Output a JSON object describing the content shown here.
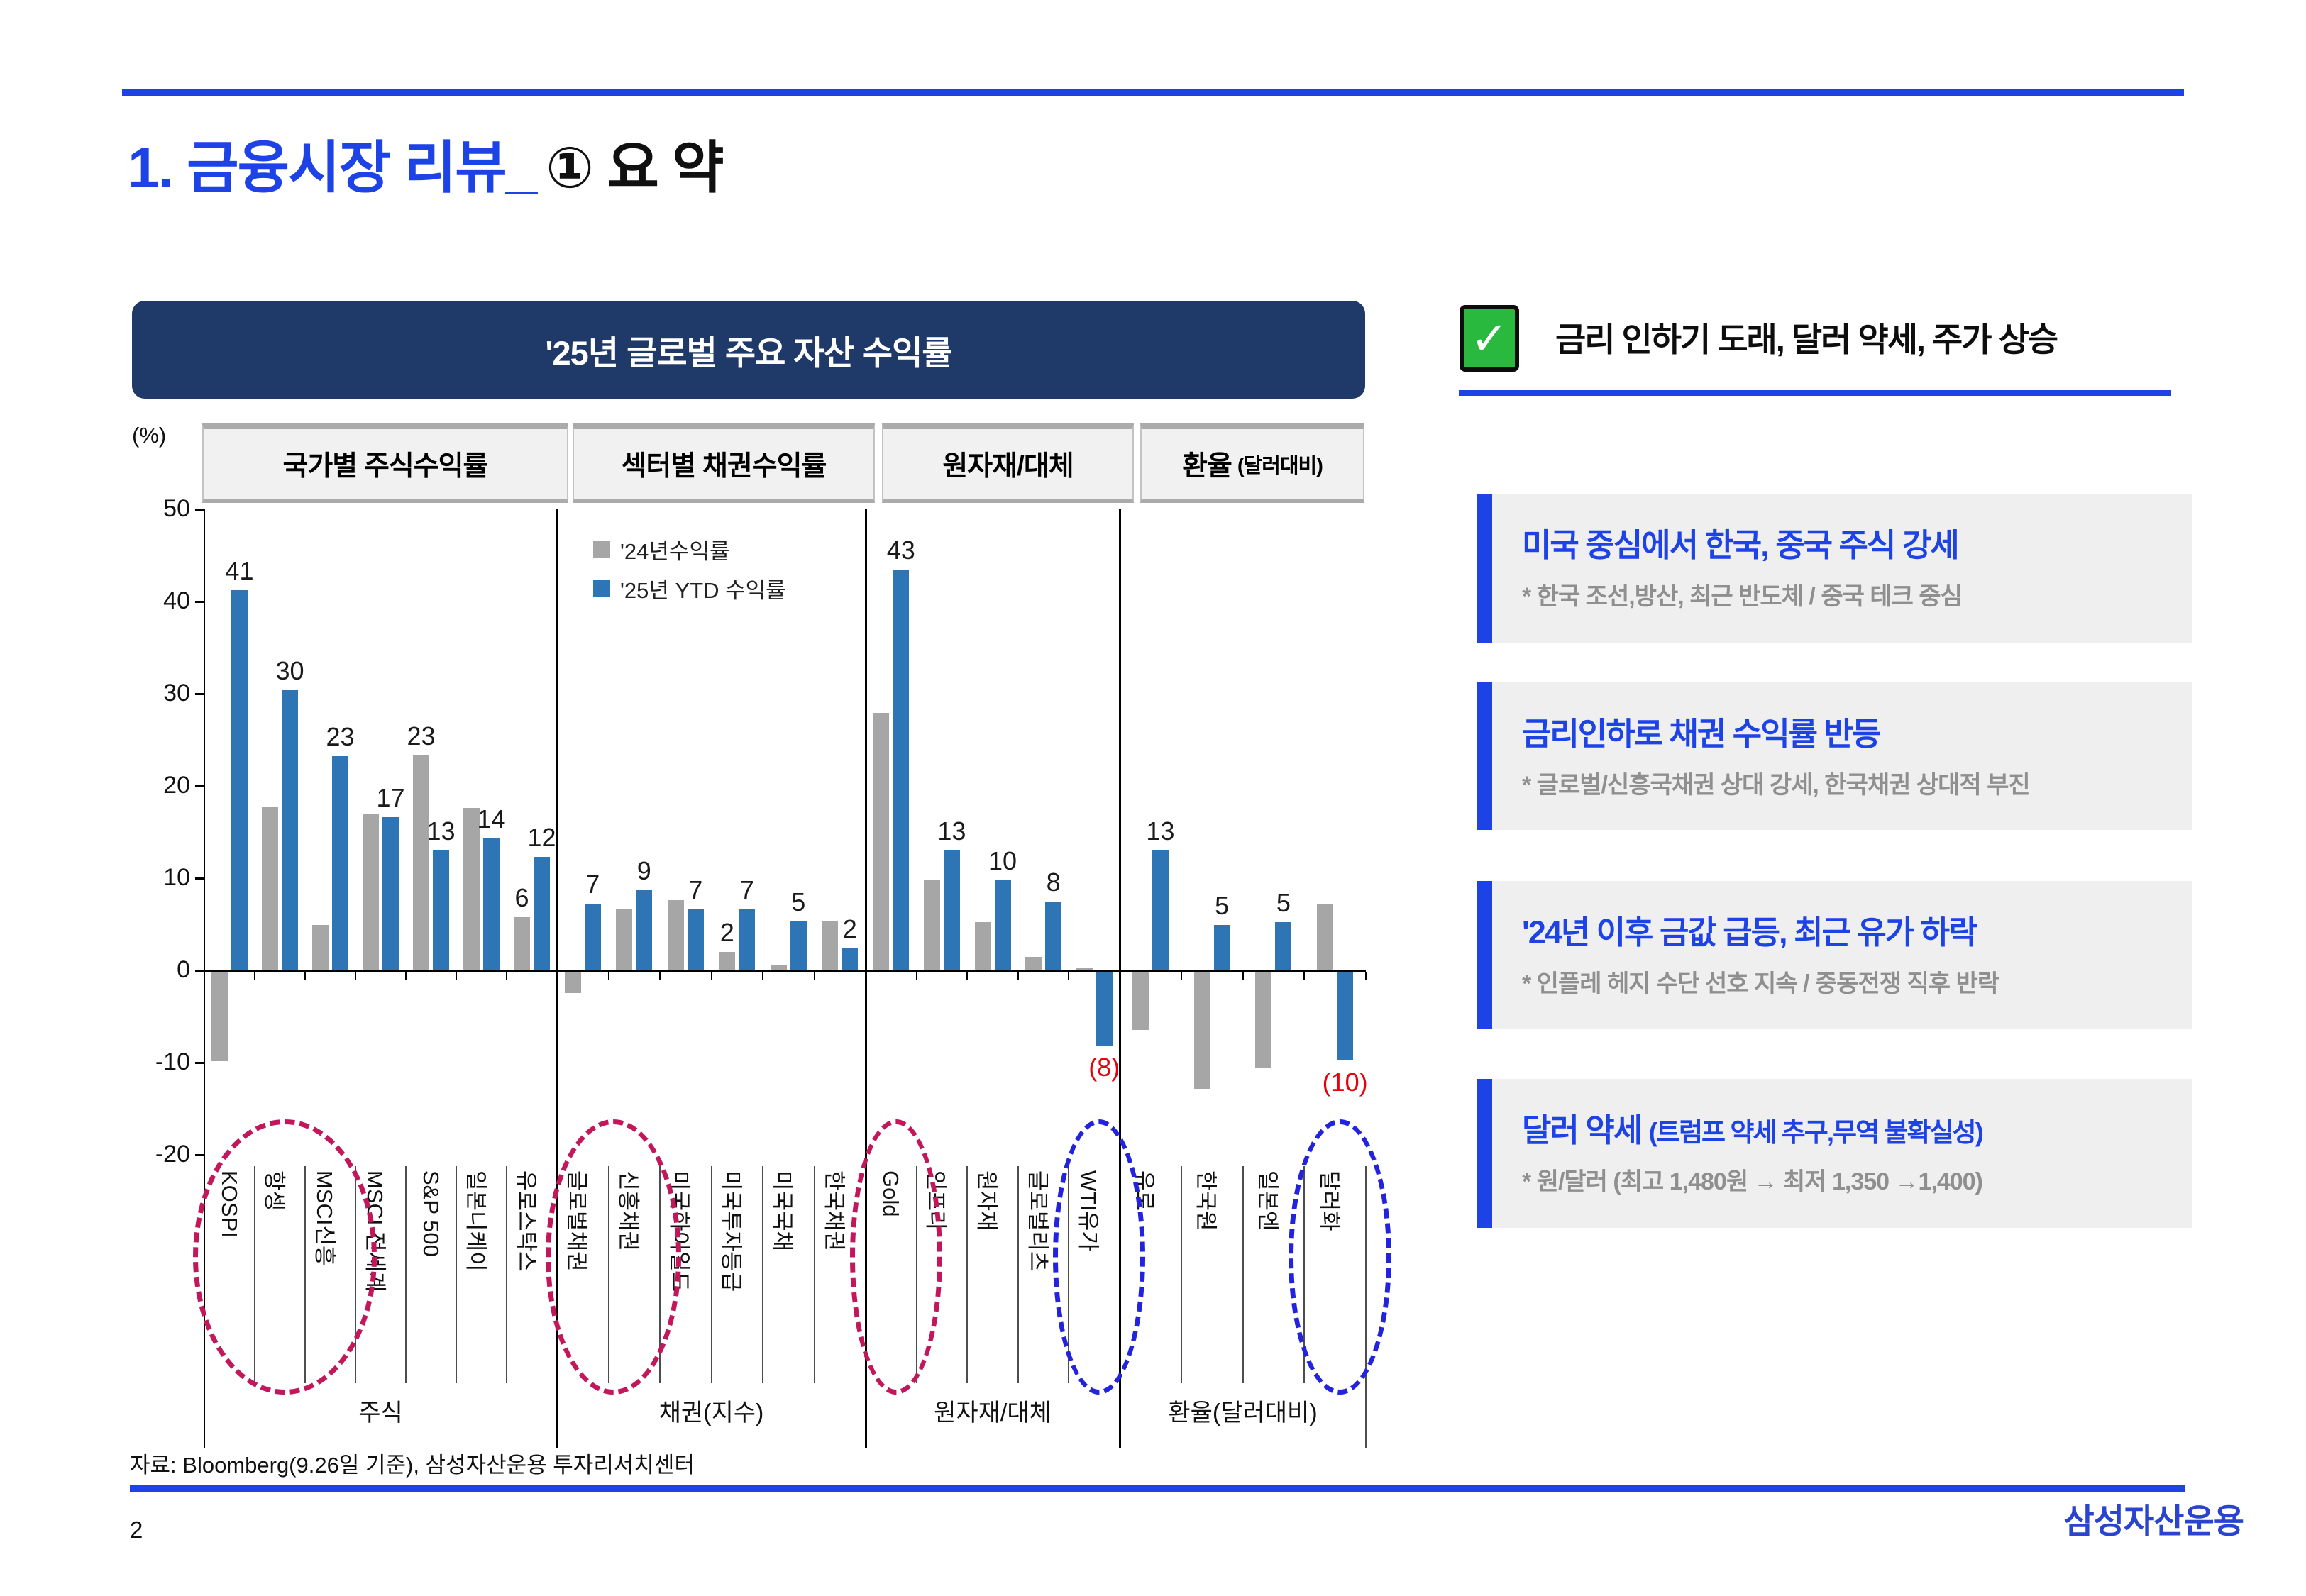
{
  "page": {
    "title_blue": "1. 금융시장 리뷰_",
    "title_black": "① 요 약",
    "source": "자료: Bloomberg(9.26일 기준), 삼성자산운용 투자리서치센터",
    "page_number": "2",
    "logo": "삼성자산운용"
  },
  "summary": {
    "check_glyph": "✓",
    "headline": "금리 인하기 도래, 달러 약세, 주가 상승",
    "callouts": [
      {
        "title": "미국 중심에서 한국, 중국 주식 강세",
        "title_suffix": "",
        "subtitle": "* 한국 조선,방산, 최근 반도체 / 중국 테크 중심"
      },
      {
        "title": "금리인하로 채권 수익률 반등",
        "title_suffix": "",
        "subtitle": "* 글로벌/신흥국채권 상대 강세, 한국채권 상대적 부진"
      },
      {
        "title": "'24년 이후 금값 급등, 최근 유가  하락",
        "title_suffix": "",
        "subtitle": "* 인플레 헤지 수단 선호 지속 / 중동전쟁 직후 반락"
      },
      {
        "title": "달러 약세 ",
        "title_suffix": "(트럼프 약세 추구,무역 불확실성)",
        "subtitle": "* 원/달러 (최고 1,480원 → 최저 1,350 →1,400)"
      }
    ]
  },
  "chart_card": {
    "title": "'25년 글로벌 주요 자산 수익률",
    "unit_label": "(%)"
  },
  "chart_data": {
    "type": "bar",
    "title": "'25년 글로벌 주요 자산 수익률",
    "ylabel": "(%)",
    "ylim": [
      -20,
      50
    ],
    "yticks": [
      50,
      40,
      30,
      20,
      10,
      0,
      -10,
      -20
    ],
    "grid": false,
    "legend_position": "upper-middle",
    "legend": [
      {
        "name": "'24년수익률",
        "color": "#a6a6a6"
      },
      {
        "name": "'25년 YTD 수익률",
        "color": "#2e75b6"
      }
    ],
    "negative_label_color": "#e8000d",
    "sections": [
      {
        "header": "국가별 주식수익률",
        "header_suffix": "",
        "group_label": "주식",
        "categories": [
          {
            "name": "KOSPI",
            "y24": -9.7,
            "y25": 41.2,
            "label25": "41"
          },
          {
            "name": "항셍",
            "y24": 17.7,
            "y25": 30.4,
            "label25": "30"
          },
          {
            "name": "MSCI신흥",
            "y24": 4.9,
            "y25": 23.2,
            "label25": "23"
          },
          {
            "name": "MSCI 전세계",
            "y24": 17.0,
            "y25": 16.6,
            "label25": "17"
          },
          {
            "name": "S&P 500",
            "y24": 23.3,
            "y25": 13.0,
            "label24": "23",
            "label25": "13"
          },
          {
            "name": "일본니케이",
            "y24": 17.6,
            "y25": 14.3,
            "label25": "14"
          },
          {
            "name": "유로스탁스",
            "y24": 5.8,
            "y25": 12.3,
            "label24": "6",
            "label25": "12"
          }
        ]
      },
      {
        "header": "섹터별 채권수익률",
        "header_suffix": "",
        "group_label": "채권(지수)",
        "categories": [
          {
            "name": "글로벌채권",
            "y24": -2.3,
            "y25": 7.2,
            "label25": "7"
          },
          {
            "name": "신흥채권",
            "y24": 6.6,
            "y25": 8.7,
            "label25": "9"
          },
          {
            "name": "미국하이일드",
            "y24": 7.6,
            "y25": 6.6,
            "label25": "7"
          },
          {
            "name": "미국투자등급",
            "y24": 2.0,
            "y25": 6.6,
            "label24": "2",
            "label25": "7"
          },
          {
            "name": "미국국채",
            "y24": 0.6,
            "y25": 5.3,
            "label25": "5"
          },
          {
            "name": "한국채권",
            "y24": 5.3,
            "y25": 2.4,
            "label25": "2"
          }
        ]
      },
      {
        "header": "원자재/대체",
        "header_suffix": "",
        "group_label": "원자재/대체",
        "categories": [
          {
            "name": "Gold",
            "y24": 27.9,
            "y25": 43.5,
            "label25": "43"
          },
          {
            "name": "인프라",
            "y24": 9.8,
            "y25": 13.0,
            "label25": "13"
          },
          {
            "name": "원자재",
            "y24": 5.2,
            "y25": 9.8,
            "label25": "10"
          },
          {
            "name": "글로벌리츠",
            "y24": 1.5,
            "y25": 7.5,
            "label25": "8"
          },
          {
            "name": "WTI유가",
            "y24": 0.2,
            "y25": -8.0,
            "label25": "(8)"
          }
        ]
      },
      {
        "header": "환율",
        "header_suffix": "(달러대비)",
        "group_label": "환율(달러대비)",
        "categories": [
          {
            "name": "유로",
            "y24": -6.3,
            "y25": 13.0,
            "label25": "13"
          },
          {
            "name": "한국원",
            "y24": -12.7,
            "y25": 4.9,
            "label25": "5"
          },
          {
            "name": "일본엔",
            "y24": -10.4,
            "y25": 5.2,
            "label25": "5"
          },
          {
            "name": "달러화",
            "y24": 7.2,
            "y25": -9.6,
            "label25": "(10)"
          }
        ]
      }
    ],
    "highlights": [
      {
        "section": 0,
        "from": 0,
        "to": 2,
        "color": "#c2185b"
      },
      {
        "section": 1,
        "from": 0,
        "to": 1,
        "color": "#c2185b"
      },
      {
        "section": 2,
        "from": 0,
        "to": 0,
        "color": "#c2185b"
      },
      {
        "section": 2,
        "from": 4,
        "to": 4,
        "color": "#2323dd"
      },
      {
        "section": 3,
        "from": 3,
        "to": 3,
        "color": "#2323dd"
      }
    ]
  }
}
